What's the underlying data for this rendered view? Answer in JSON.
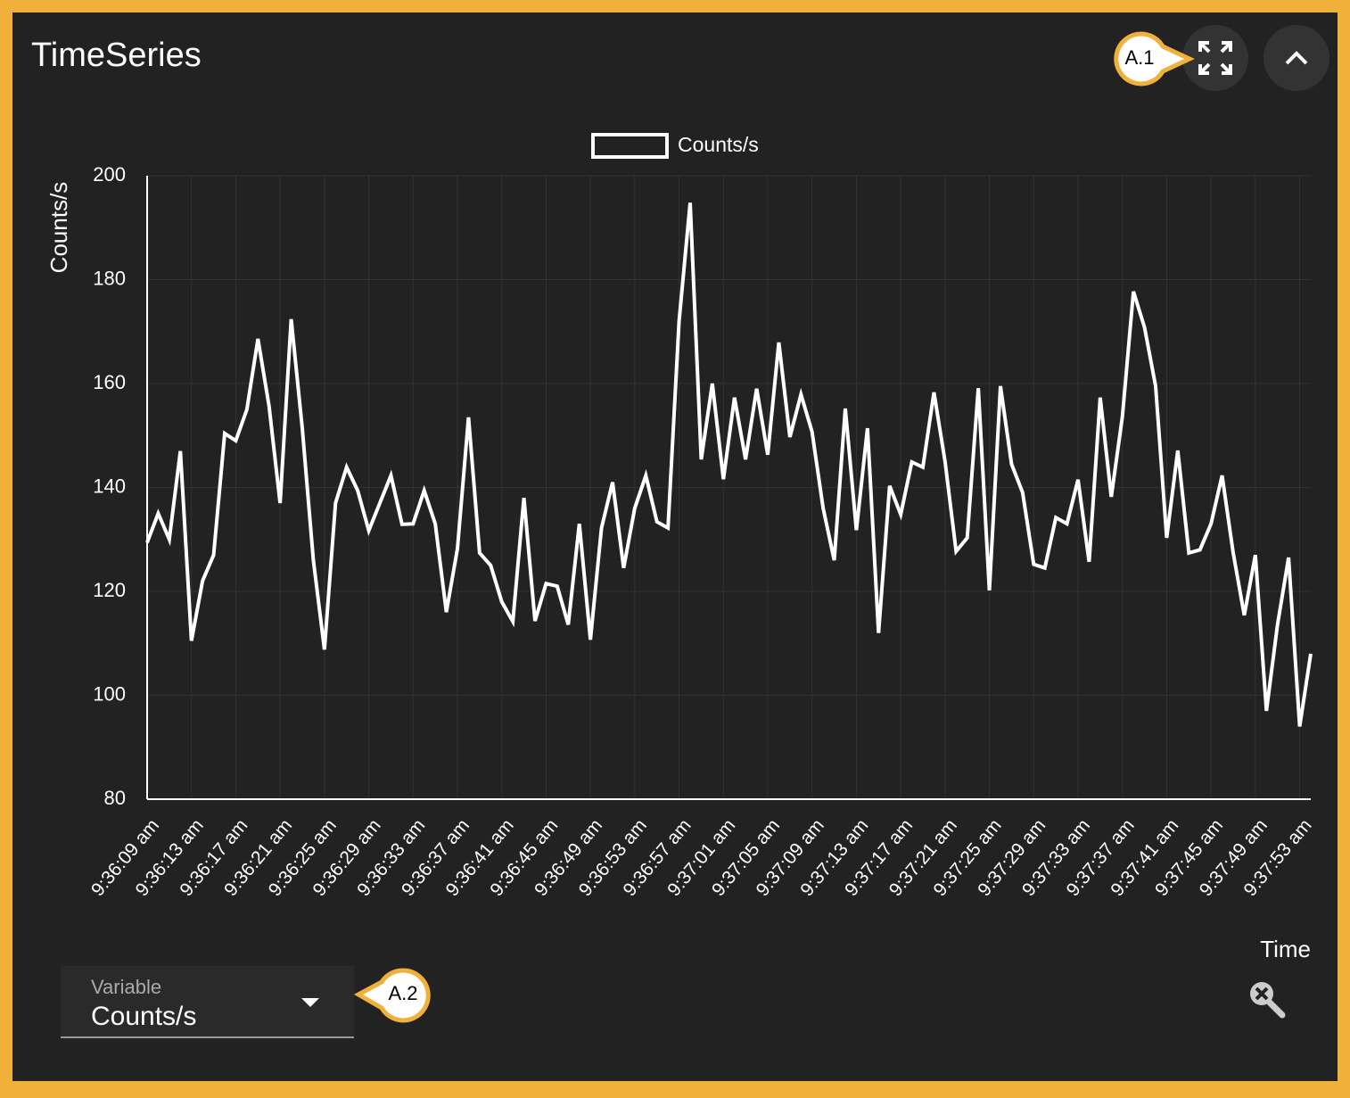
{
  "header": {
    "title": "TimeSeries"
  },
  "annotations": [
    "A.1",
    "A.2"
  ],
  "variable_select": {
    "label": "Variable",
    "value": "Counts/s"
  },
  "chart_data": {
    "type": "line",
    "y_label": "Counts/s",
    "x_label": "Time",
    "categories": [
      "9:36:09 am",
      null,
      null,
      null,
      "9:36:13 am",
      null,
      null,
      null,
      "9:36:17 am",
      null,
      null,
      null,
      "9:36:21 am",
      null,
      null,
      null,
      "9:36:25 am",
      null,
      null,
      null,
      "9:36:29 am",
      null,
      null,
      null,
      "9:36:33 am",
      null,
      null,
      null,
      "9:36:37 am",
      null,
      null,
      null,
      "9:36:41 am",
      null,
      null,
      null,
      "9:36:45 am",
      null,
      null,
      null,
      "9:36:49 am",
      null,
      null,
      null,
      "9:36:53 am",
      null,
      null,
      null,
      "9:36:57 am",
      null,
      null,
      null,
      "9:37:01 am",
      null,
      null,
      null,
      "9:37:05 am",
      null,
      null,
      null,
      "9:37:09 am",
      null,
      null,
      null,
      "9:37:13 am",
      null,
      null,
      null,
      "9:37:17 am",
      null,
      null,
      null,
      "9:37:21 am",
      null,
      null,
      null,
      "9:37:25 am",
      null,
      null,
      null,
      "9:37:29 am",
      null,
      null,
      null,
      "9:37:33 am",
      null,
      null,
      null,
      "9:37:37 am",
      null,
      null,
      null,
      "9:37:41 am",
      null,
      null,
      null,
      "9:37:45 am",
      null,
      null,
      null,
      "9:37:49 am",
      null,
      null,
      null,
      "9:37:53 am",
      null
    ],
    "series": [
      {
        "name": "Counts/s",
        "color": "#ffffff",
        "values": [
          129.4,
          135,
          130,
          147,
          110.5,
          122,
          127,
          150.4,
          149,
          155,
          168.6,
          155.7,
          137,
          172.4,
          151.4,
          126,
          108.8,
          137,
          143.9,
          139.4,
          131.7,
          137,
          142.3,
          132.9,
          133,
          139.4,
          133,
          116,
          128.2,
          153.5,
          127.4,
          125,
          118,
          114.2,
          138,
          114.3,
          121.5,
          121,
          113.6,
          133,
          110.7,
          132.2,
          141,
          124.5,
          136,
          142.3,
          133.4,
          132.2,
          172,
          194.8,
          145.4,
          160,
          141.6,
          157.3,
          145.4,
          159,
          146.3,
          167.9,
          149.7,
          157.9,
          150.7,
          136,
          126,
          155.2,
          131.8,
          151.4,
          112,
          140.3,
          134.8,
          144.9,
          143.9,
          158.3,
          145,
          127.7,
          130.3,
          159.1,
          120.2,
          159.5,
          144.5,
          139,
          125.2,
          124.5,
          134.2,
          133,
          141.5,
          125.7,
          157.3,
          138.2,
          153.6,
          177.7,
          170.8,
          159.5,
          130.3,
          147.1,
          127.4,
          128,
          133,
          142.3,
          127.4,
          115.4,
          127,
          97,
          113.6,
          126.5,
          94,
          108
        ]
      }
    ],
    "ylim": [
      80,
      200
    ],
    "yticks": [
      80,
      100,
      120,
      140,
      160,
      180,
      200
    ],
    "grid": true,
    "legend": "top"
  }
}
